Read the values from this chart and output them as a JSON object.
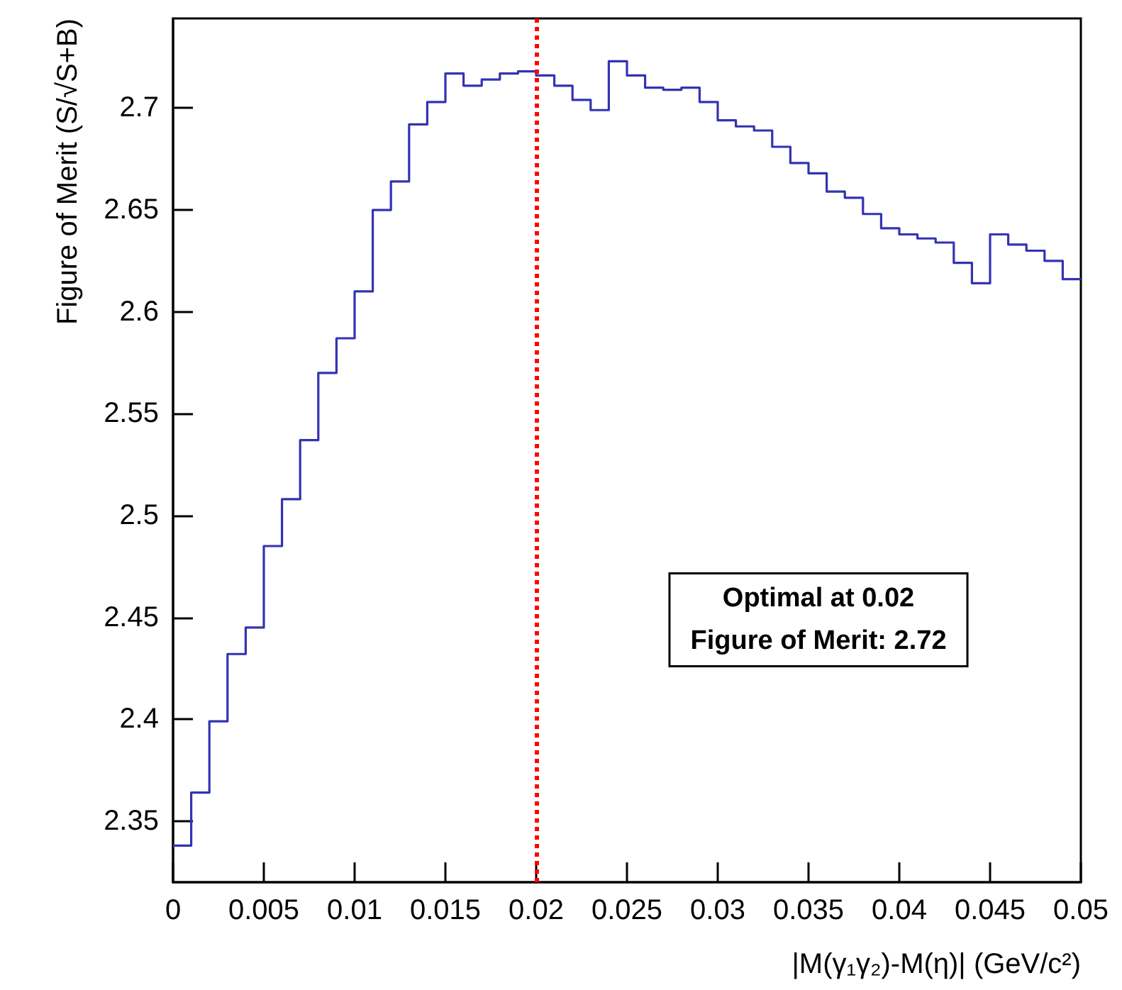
{
  "chart_data": {
    "type": "histogram",
    "xlabel": "|M(γ₁γ₂)-M(η)| (GeV/c²)",
    "ylabel": "Figure of Merit (S/√S+B)",
    "bins": [
      0,
      0.001,
      0.002,
      0.003,
      0.004,
      0.005,
      0.006,
      0.007,
      0.008,
      0.009,
      0.01,
      0.011,
      0.012,
      0.013,
      0.014,
      0.015,
      0.016,
      0.017,
      0.018,
      0.019,
      0.02,
      0.021,
      0.022,
      0.023,
      0.024,
      0.025,
      0.026,
      0.027,
      0.028,
      0.029,
      0.03,
      0.031,
      0.032,
      0.033,
      0.034,
      0.035,
      0.036,
      0.037,
      0.038,
      0.039,
      0.04,
      0.041,
      0.042,
      0.043,
      0.044,
      0.045,
      0.046,
      0.047,
      0.048,
      0.049,
      0.05
    ],
    "values": [
      2.338,
      2.364,
      2.399,
      2.432,
      2.445,
      2.485,
      2.508,
      2.537,
      2.57,
      2.587,
      2.61,
      2.65,
      2.664,
      2.692,
      2.703,
      2.717,
      2.711,
      2.714,
      2.717,
      2.718,
      2.716,
      2.711,
      2.704,
      2.699,
      2.723,
      2.716,
      2.71,
      2.709,
      2.71,
      2.703,
      2.694,
      2.691,
      2.689,
      2.681,
      2.673,
      2.668,
      2.659,
      2.656,
      2.648,
      2.641,
      2.638,
      2.636,
      2.634,
      2.624,
      2.614,
      2.638,
      2.633,
      2.63,
      2.625,
      2.616
    ],
    "color": "#3333b3",
    "xlim": [
      0,
      0.05
    ],
    "xticks": [
      0,
      0.005,
      0.01,
      0.015,
      0.02,
      0.025,
      0.03,
      0.035,
      0.04,
      0.045,
      0.05
    ],
    "ylim": [
      2.32,
      2.744
    ],
    "yticks": [
      2.35,
      2.4,
      2.45,
      2.5,
      2.55,
      2.6,
      2.65,
      2.7
    ],
    "ref_lines": [
      {
        "axis": "x",
        "value": 0.02,
        "color": "#ff0000",
        "line_style": "dotted"
      }
    ],
    "annotations": [
      "Optimal at 0.02",
      "Figure of Merit: 2.72"
    ],
    "grid": false
  }
}
